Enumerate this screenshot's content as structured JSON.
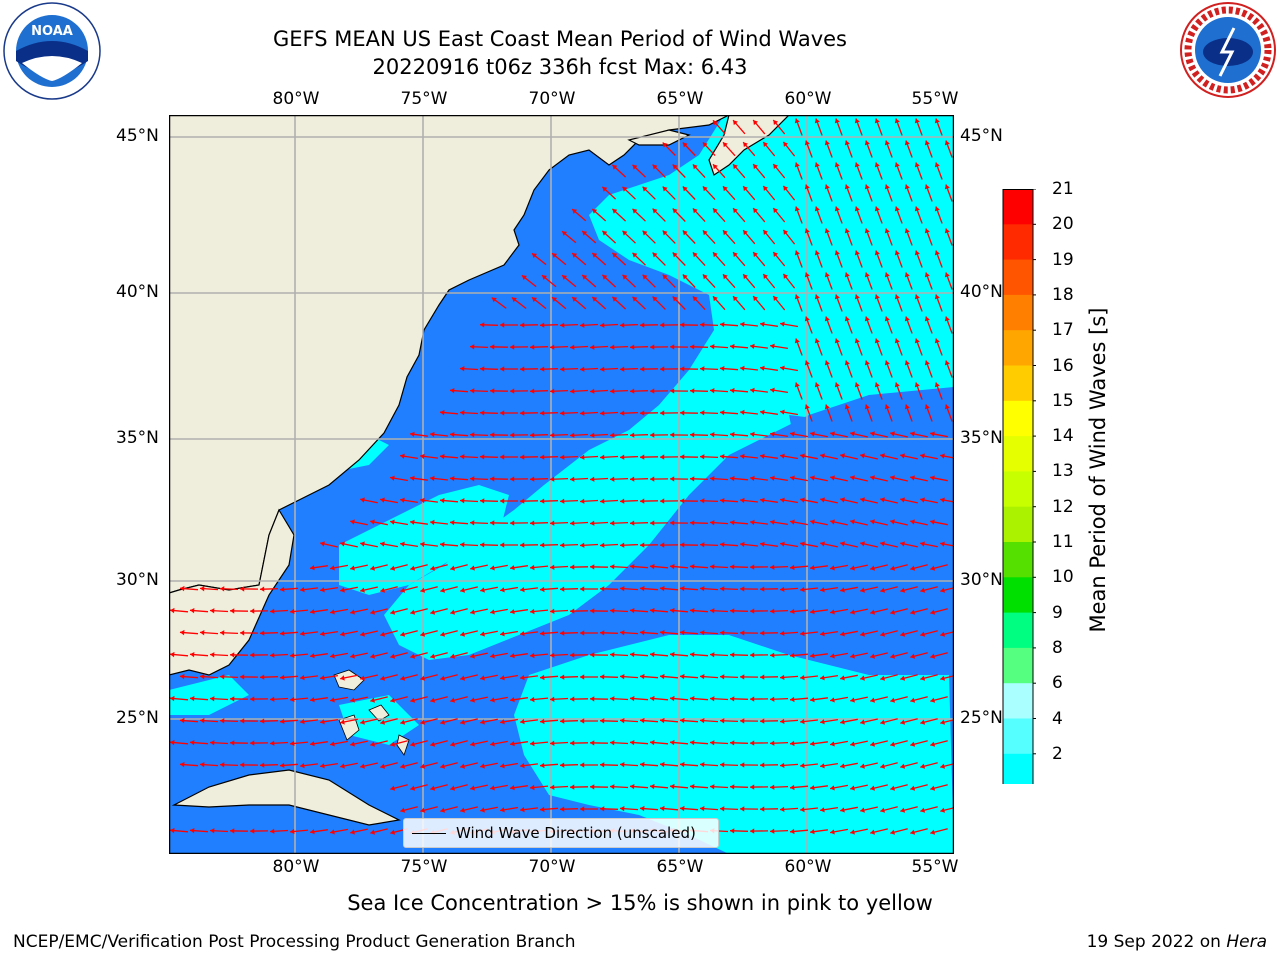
{
  "title_line1": "GEFS MEAN US East Coast Mean Period of Wind Waves",
  "title_line2": "20220916 t06z 336h fcst   Max: 6.43",
  "logos": {
    "left": "noaa-logo",
    "right": "national-weather-service-logo"
  },
  "map": {
    "lon_labels": [
      "80°W",
      "75°W",
      "70°W",
      "65°W",
      "60°W",
      "55°W"
    ],
    "lat_labels": [
      "45°N",
      "40°N",
      "35°N",
      "30°N",
      "25°N"
    ],
    "gridlines": true,
    "colors": {
      "land": "#efeddb",
      "period_2_4": "#1f7fff",
      "period_4_6": "#00ffff",
      "below_min": "#0000ff",
      "arrows": "#ff0000",
      "grid": "#b0b0b0"
    },
    "legend_label": "Wind Wave Direction (unscaled)"
  },
  "colorbar": {
    "label": "Mean Period of Wind Waves [s]",
    "ticks": [
      "21",
      "20",
      "19",
      "18",
      "17",
      "16",
      "15",
      "14",
      "13",
      "12",
      "11",
      "10",
      "9",
      "8",
      "6",
      "4",
      "2"
    ],
    "colors": [
      "#ff0000",
      "#ff2a00",
      "#ff5500",
      "#ff8000",
      "#ffa600",
      "#ffcc00",
      "#ffff00",
      "#e6ff00",
      "#c8ff00",
      "#aaf200",
      "#55e000",
      "#00e000",
      "#00ff80",
      "#55ff80",
      "#aaffff",
      "#55ffff",
      "#00ffff",
      "#1f7fff"
    ],
    "extend_color": "#0000ff"
  },
  "note": "Sea Ice Concentration > 15% is shown in pink to yellow",
  "footer_left": "NCEP/EMC/Verification Post Processing Product Generation Branch",
  "footer_right_date": "19 Sep 2022 on ",
  "footer_right_host": "Hera"
}
